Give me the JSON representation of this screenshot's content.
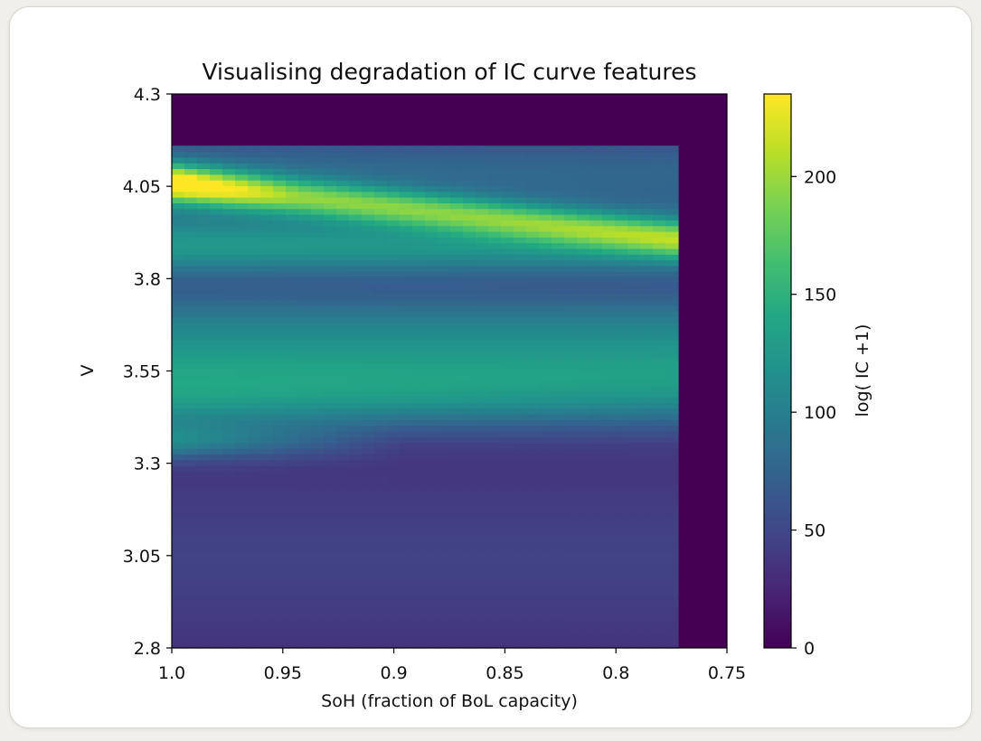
{
  "chart_data": {
    "type": "heatmap",
    "title": "Visualising degradation of IC curve features",
    "xlabel": "SoH (fraction of BoL capacity)",
    "ylabel": "V",
    "colorbar_label": "log( IC +1)",
    "xlim": [
      1.0,
      0.75
    ],
    "ylim": [
      2.8,
      4.3
    ],
    "x_ticks": [
      "1.0",
      "0.95",
      "0.9",
      "0.85",
      "0.8",
      "0.75"
    ],
    "y_ticks": [
      "4.3",
      "4.05",
      "3.8",
      "3.55",
      "3.3",
      "3.05",
      "2.8"
    ],
    "colorbar_ticks": [
      "0",
      "50",
      "100",
      "150",
      "200"
    ],
    "colorbar_range": [
      0,
      235
    ],
    "colormap": "viridis",
    "data_extent": {
      "soh": [
        1.0,
        0.772
      ],
      "v": [
        2.8,
        4.16
      ]
    },
    "features": [
      {
        "name": "high-voltage peak",
        "v_at_soh_1": 4.06,
        "v_at_soh_0.772": 3.91,
        "peak_value": 230
      },
      {
        "name": "mid-voltage band",
        "v": 3.56,
        "value": 125
      },
      {
        "name": "low-voltage shoulder",
        "v": 3.36,
        "value": 95
      },
      {
        "name": "low-voltage background",
        "v_range": [
          2.8,
          3.3
        ],
        "value": 28
      }
    ],
    "grid": false
  }
}
